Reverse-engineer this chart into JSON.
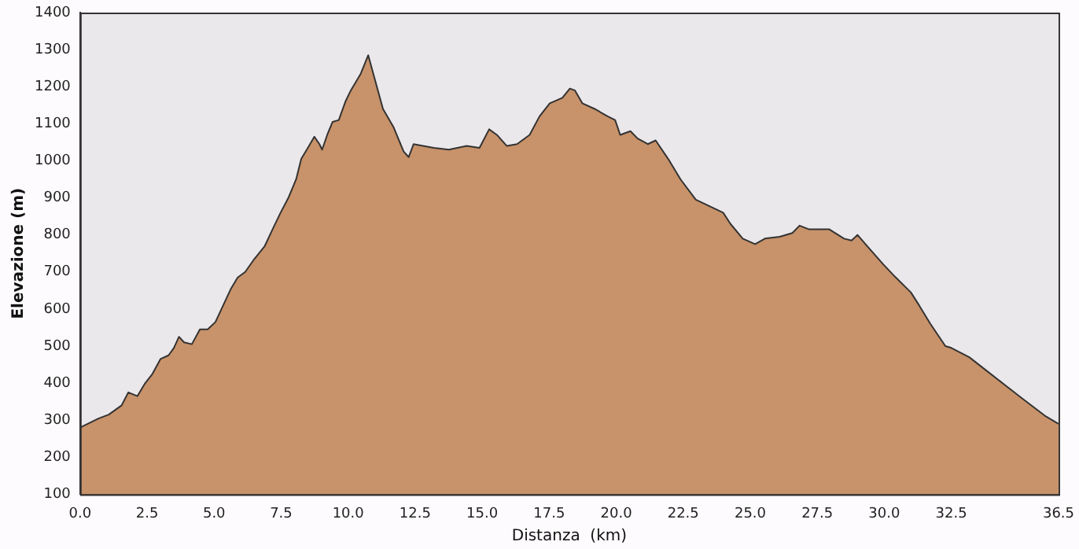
{
  "chart_data": {
    "type": "area",
    "xlabel": "Distanza  (km)",
    "ylabel": "Elevazione (m)",
    "xlim": [
      0,
      36.5
    ],
    "xticks": [
      {
        "value": 0,
        "label": "0.0"
      },
      {
        "value": 2.5,
        "label": "2.5"
      },
      {
        "value": 5,
        "label": "5.0"
      },
      {
        "value": 7.5,
        "label": "7.5"
      },
      {
        "value": 10,
        "label": "10.0"
      },
      {
        "value": 12.5,
        "label": "12.5"
      },
      {
        "value": 15,
        "label": "15.0"
      },
      {
        "value": 17.5,
        "label": "17.5"
      },
      {
        "value": 20,
        "label": "20.0"
      },
      {
        "value": 22.5,
        "label": "22.5"
      },
      {
        "value": 25,
        "label": "25.0"
      },
      {
        "value": 27.5,
        "label": "27.5"
      },
      {
        "value": 30,
        "label": "30.0"
      },
      {
        "value": 32.5,
        "label": "32.5"
      },
      {
        "value": 36.5,
        "label": "36.5"
      }
    ],
    "ylim": [
      100,
      1400
    ],
    "yticks": [
      100,
      200,
      300,
      400,
      500,
      600,
      700,
      800,
      900,
      1000,
      1100,
      1200,
      1300,
      1400
    ],
    "grid": false,
    "legend": false,
    "marker": "none",
    "series": [
      {
        "color": "#c8926a",
        "x": [
          0,
          0.7,
          1.07,
          1.55,
          1.8,
          2.14,
          2.43,
          2.7,
          3.0,
          3.3,
          3.5,
          3.69,
          3.88,
          4.17,
          4.47,
          4.76,
          5.05,
          5.34,
          5.63,
          5.88,
          6.16,
          6.5,
          6.89,
          7.18,
          7.48,
          7.77,
          8.06,
          8.25,
          8.54,
          8.74,
          8.93,
          9.03,
          9.22,
          9.42,
          9.65,
          9.9,
          10.1,
          10.47,
          10.75,
          11.3,
          11.7,
          12.07,
          12.26,
          12.44,
          13.2,
          13.76,
          14.42,
          14.9,
          15.26,
          15.55,
          15.92,
          16.3,
          16.77,
          17.14,
          17.52,
          17.99,
          18.27,
          18.46,
          18.74,
          19.2,
          19.68,
          19.96,
          20.15,
          20.53,
          20.8,
          21.18,
          21.47,
          21.94,
          22.4,
          22.97,
          23.99,
          24.26,
          24.72,
          25.18,
          25.55,
          26.1,
          26.57,
          26.84,
          27.2,
          27.95,
          28.5,
          28.78,
          29.0,
          29.42,
          29.97,
          30.43,
          30.99,
          31.3,
          31.72,
          32.28,
          32.5,
          33.17,
          33.79,
          34.5,
          35.21,
          36.03,
          36.5
        ],
        "values": [
          280,
          305,
          315,
          340,
          375,
          365,
          400,
          425,
          465,
          475,
          495,
          525,
          510,
          505,
          545,
          545,
          565,
          610,
          655,
          685,
          700,
          735,
          770,
          815,
          860,
          900,
          950,
          1005,
          1040,
          1065,
          1045,
          1030,
          1070,
          1105,
          1110,
          1160,
          1190,
          1235,
          1285,
          1140,
          1090,
          1025,
          1010,
          1045,
          1035,
          1030,
          1040,
          1035,
          1085,
          1070,
          1040,
          1045,
          1070,
          1120,
          1155,
          1170,
          1195,
          1190,
          1155,
          1140,
          1120,
          1110,
          1070,
          1080,
          1060,
          1045,
          1055,
          1005,
          950,
          895,
          860,
          830,
          790,
          775,
          790,
          795,
          805,
          825,
          815,
          815,
          790,
          785,
          800,
          765,
          720,
          685,
          645,
          610,
          560,
          500,
          495,
          470,
          435,
          395,
          355,
          310,
          290
        ]
      }
    ]
  }
}
